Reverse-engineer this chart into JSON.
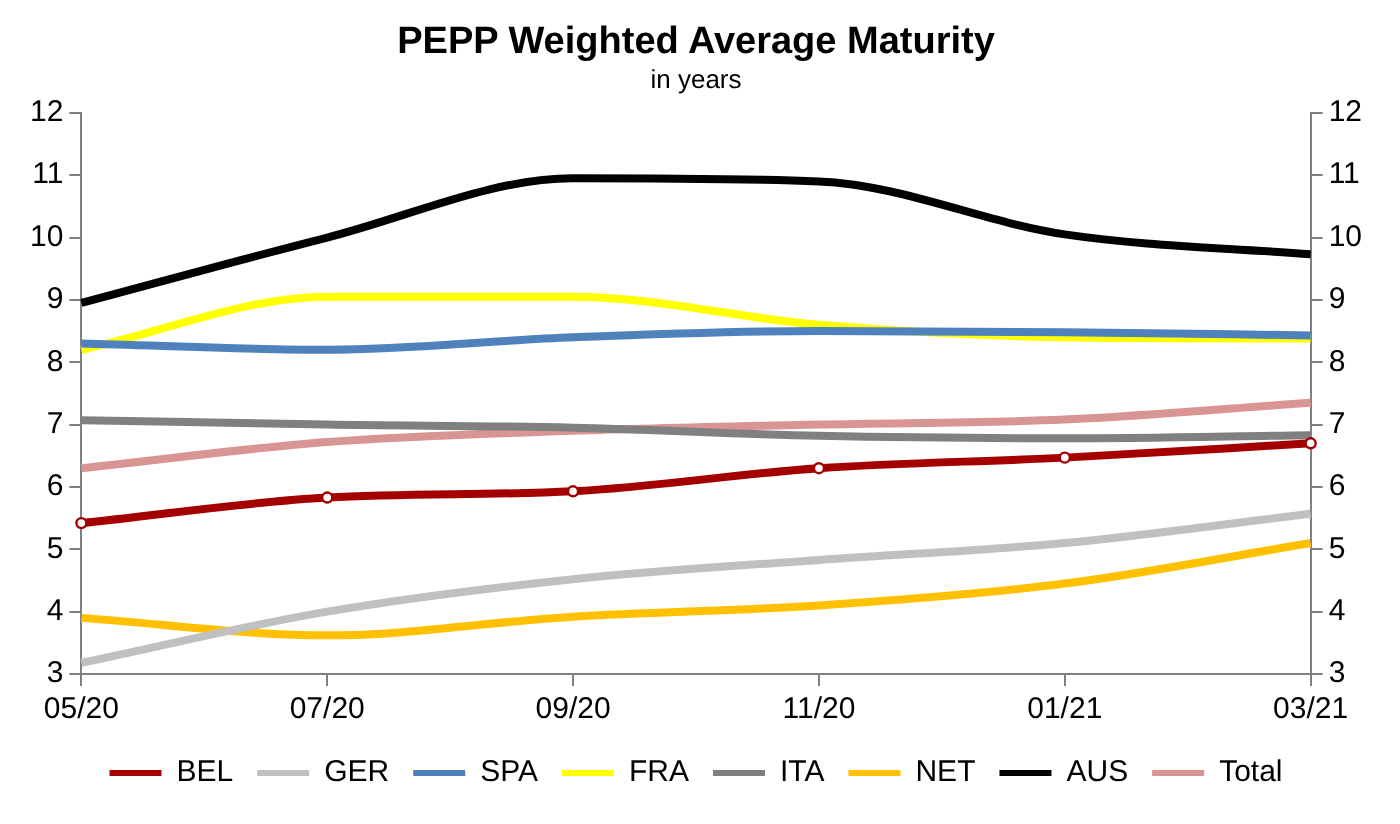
{
  "chart_data": {
    "type": "line",
    "title": "PEPP Weighted Average Maturity",
    "subtitle": "in years",
    "categories": [
      "05/20",
      "07/20",
      "09/20",
      "11/20",
      "01/21",
      "03/21"
    ],
    "series": [
      {
        "name": "BEL",
        "color": "#a50000",
        "marker": "circle",
        "values": [
          5.42,
          5.83,
          5.93,
          6.3,
          6.47,
          6.7
        ]
      },
      {
        "name": "GER",
        "color": "#c0c0c0",
        "marker": "none",
        "values": [
          3.18,
          4.0,
          4.52,
          4.83,
          5.1,
          5.57
        ]
      },
      {
        "name": "SPA",
        "color": "#4f81bd",
        "marker": "none",
        "values": [
          8.3,
          8.2,
          8.4,
          8.5,
          8.48,
          8.43
        ]
      },
      {
        "name": "FRA",
        "color": "#ffff00",
        "marker": "none",
        "values": [
          8.2,
          9.05,
          9.05,
          8.6,
          8.4,
          8.38
        ]
      },
      {
        "name": "ITA",
        "color": "#808080",
        "marker": "none",
        "values": [
          7.07,
          7.0,
          6.95,
          6.82,
          6.78,
          6.83
        ]
      },
      {
        "name": "NET",
        "color": "#ffc000",
        "marker": "none",
        "values": [
          3.9,
          3.62,
          3.92,
          4.1,
          4.45,
          5.1
        ]
      },
      {
        "name": "AUS",
        "color": "#000000",
        "marker": "none",
        "values": [
          8.95,
          10.0,
          10.95,
          10.9,
          10.05,
          9.73
        ]
      },
      {
        "name": "Total",
        "color": "#d99594",
        "marker": "none",
        "values": [
          6.3,
          6.72,
          6.9,
          7.0,
          7.08,
          7.35
        ]
      }
    ],
    "ylim": [
      3,
      12
    ],
    "yticks": [
      3,
      4,
      5,
      6,
      7,
      8,
      9,
      10,
      11,
      12
    ],
    "y2lim": [
      3,
      12
    ],
    "y2ticks": [
      3,
      4,
      5,
      6,
      7,
      8,
      9,
      10,
      11,
      12
    ],
    "grid": false,
    "legend": "bottom",
    "line_style": "solid"
  }
}
